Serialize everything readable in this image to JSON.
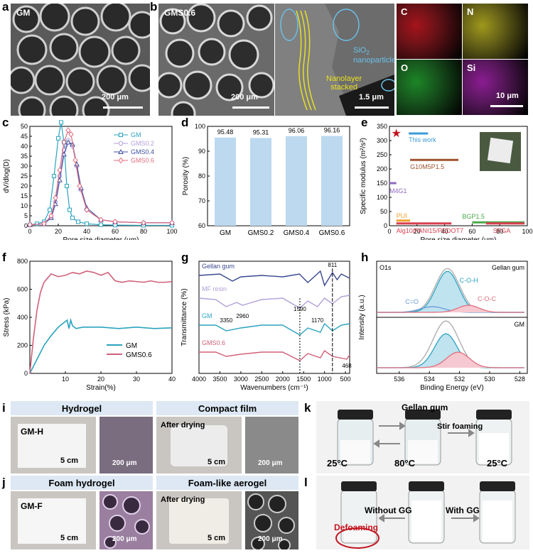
{
  "panels": {
    "a": {
      "letter": "a",
      "tag": "GM",
      "scale": "200 μm"
    },
    "b": {
      "letter": "b",
      "tag": "GMS0.6",
      "scale": "200 μm",
      "scale2": "1.5 μm",
      "note1a": "SiO",
      "note1b": "nanoparticles",
      "note2a": "Nanolayer",
      "note2b": "stacked",
      "eds": [
        {
          "el": "C",
          "color": "#c0141e"
        },
        {
          "el": "N",
          "color": "#b8b01e"
        },
        {
          "el": "O",
          "color": "#1e9a2a"
        },
        {
          "el": "Si",
          "color": "#a01ea8"
        }
      ],
      "eds_scale": "10 μm"
    },
    "c": {
      "letter": "c"
    },
    "d": {
      "letter": "d"
    },
    "e": {
      "letter": "e"
    },
    "f": {
      "letter": "f"
    },
    "g": {
      "letter": "g"
    },
    "h": {
      "letter": "h"
    },
    "i": {
      "letter": "i",
      "left_title": "Hydrogel",
      "right_title": "Compact film",
      "left_tag": "GM-H",
      "left_scale": "5 cm",
      "left_sem": "200 μm",
      "right_tag": "After drying",
      "right_scale": "5 cm",
      "right_sem": "200 μm"
    },
    "j": {
      "letter": "j",
      "left_title": "Foam hydrogel",
      "right_title": "Foam-like aerogel",
      "left_tag": "GM-F",
      "left_scale": "5 cm",
      "left_sem": "200 μm",
      "right_tag": "After drying",
      "right_scale": "5 cm",
      "right_sem": "200 μm"
    },
    "k": {
      "letter": "k",
      "top": "Gellan gum",
      "t1": "25°C",
      "t2": "80°C",
      "t3": "25°C",
      "action": "Stir foaming"
    },
    "l": {
      "letter": "l",
      "left": "Without GG",
      "right": "With GG",
      "defoam": "Defoaming"
    }
  },
  "chart_data": [
    {
      "id": "c",
      "type": "line",
      "xlabel": "Pore size diameter (μm)",
      "ylabel": "dV/dlog(D)",
      "xlim": [
        0,
        100
      ],
      "ylim": [
        0,
        50
      ],
      "xticks": [
        0,
        20,
        40,
        60,
        80,
        100
      ],
      "yticks": [
        0,
        5,
        10,
        15,
        20,
        25,
        30,
        35,
        40,
        45,
        50
      ],
      "legend": "top-right",
      "series": [
        {
          "name": "GM",
          "color": "#2aa3c0",
          "marker": "square",
          "x": [
            0,
            5,
            10,
            14,
            17,
            20,
            22,
            24,
            26,
            28,
            30,
            34,
            40,
            50,
            60,
            80,
            100
          ],
          "y": [
            0.5,
            1,
            2,
            8,
            25,
            44,
            52,
            42,
            20,
            8,
            4,
            2,
            1,
            0.5,
            0.3,
            0.2,
            0.2
          ]
        },
        {
          "name": "GMS0.2",
          "color": "#b39ddb",
          "marker": "circle",
          "x": [
            0,
            10,
            15,
            18,
            21,
            24,
            27,
            30,
            33,
            36,
            40,
            50,
            60,
            80,
            100
          ],
          "y": [
            0.5,
            1,
            4,
            12,
            25,
            38,
            43,
            40,
            30,
            18,
            8,
            3,
            2,
            1.5,
            1.5
          ]
        },
        {
          "name": "GMS0.4",
          "color": "#3f4fa0",
          "marker": "triangle",
          "x": [
            0,
            10,
            15,
            18,
            21,
            24,
            27,
            30,
            33,
            36,
            40,
            50,
            60,
            80,
            100
          ],
          "y": [
            0.5,
            1,
            4,
            11,
            23,
            36,
            42,
            41,
            31,
            19,
            9,
            3,
            2,
            1.5,
            1.5
          ]
        },
        {
          "name": "GMS0.6",
          "color": "#e06e80",
          "marker": "diamond",
          "x": [
            0,
            10,
            15,
            18,
            21,
            24,
            27,
            29,
            32,
            35,
            40,
            50,
            60,
            80,
            100
          ],
          "y": [
            0.5,
            1,
            5,
            14,
            28,
            42,
            48,
            46,
            33,
            20,
            8,
            3,
            2,
            1.5,
            1.5
          ]
        }
      ]
    },
    {
      "id": "d",
      "type": "bar",
      "xlabel": "",
      "ylabel": "Porosity (%)",
      "ylim": [
        60,
        100
      ],
      "yticks": [
        60,
        70,
        80,
        90,
        100
      ],
      "categories": [
        "GM",
        "GMS0.2",
        "GMS0.4",
        "GMS0.6"
      ],
      "values": [
        95.48,
        95.31,
        96.06,
        96.16
      ],
      "labels": [
        "95.48",
        "95.31",
        "96.06",
        "96.16"
      ],
      "bar_color": "#bcd9ef"
    },
    {
      "id": "e",
      "type": "scatter",
      "xlabel": "Pore size diameter (μm)",
      "ylabel": "Specific modulus (m²/s²)",
      "xlim": [
        0,
        100
      ],
      "ylim": [
        0,
        350
      ],
      "xticks": [
        0,
        20,
        40,
        60,
        80,
        100
      ],
      "yticks": [
        0,
        50,
        100,
        150,
        200,
        250,
        300,
        350
      ],
      "items": [
        {
          "name": "This work",
          "x": [
            14,
            28
          ],
          "y": 325,
          "color": "#3a9bd8"
        },
        {
          "name": "G10M5P1.5",
          "x": [
            15,
            50
          ],
          "y": 232,
          "color": "#a0522d"
        },
        {
          "name": "M4G1",
          "x": [
            0,
            5
          ],
          "y": 150,
          "color": "#8e6bbf"
        },
        {
          "name": "PUI",
          "x": [
            5,
            15
          ],
          "y": 18,
          "color": "#f0a030"
        },
        {
          "name": "Alg10/PANI15/PEDOT7",
          "x": [
            5,
            45
          ],
          "y": 8,
          "color": "#d84050"
        },
        {
          "name": "BGP1.5",
          "x": [
            60,
            98
          ],
          "y": 12,
          "color": "#4aa84a"
        },
        {
          "name": "SFGA",
          "x": [
            70,
            98
          ],
          "y": 8,
          "color": "#d84050"
        }
      ],
      "star": {
        "x": 5,
        "y": 325,
        "color": "#c0141e"
      }
    },
    {
      "id": "f",
      "type": "line",
      "xlabel": "Strain(%)",
      "ylabel": "Stress (kPa)",
      "xlim": [
        0,
        40
      ],
      "ylim": [
        0,
        800
      ],
      "xticks": [
        10,
        20,
        30,
        40
      ],
      "yticks": [
        0,
        200,
        400,
        600,
        800
      ],
      "legend": "bottom-right",
      "series": [
        {
          "name": "GM",
          "color": "#2aa3c0",
          "x": [
            0,
            2,
            4,
            6,
            8,
            10,
            10.5,
            11,
            11.5,
            12,
            13,
            15,
            20,
            25,
            30,
            35,
            40
          ],
          "y": [
            0,
            100,
            200,
            270,
            330,
            370,
            380,
            320,
            380,
            340,
            320,
            330,
            330,
            320,
            330,
            320,
            325
          ]
        },
        {
          "name": "GMS0.6",
          "color": "#d0607a",
          "x": [
            0,
            1,
            2,
            3,
            4,
            5,
            6,
            8,
            10,
            12,
            14,
            16,
            18,
            20,
            22,
            24,
            26,
            28,
            30,
            32,
            34,
            36,
            38,
            40
          ],
          "y": [
            0,
            250,
            450,
            580,
            650,
            680,
            710,
            690,
            700,
            720,
            710,
            730,
            720,
            700,
            720,
            660,
            650,
            660,
            655,
            650,
            660,
            650,
            650,
            655
          ]
        }
      ]
    },
    {
      "id": "g",
      "type": "line",
      "xlabel": "Wavenumbers (cm⁻¹)",
      "ylabel": "Transmittance (%)",
      "xlim": [
        4000,
        400
      ],
      "xticks": [
        4000,
        3500,
        3000,
        2500,
        2000,
        1500,
        1000,
        500
      ],
      "series": [
        {
          "name": "Gellan gum",
          "color": "#3a4890"
        },
        {
          "name": "MF resin",
          "color": "#b0a0d8"
        },
        {
          "name": "GM",
          "color": "#2aa3c0"
        },
        {
          "name": "GMS0.6",
          "color": "#d0607a"
        }
      ],
      "annotations": [
        "3350",
        "2960",
        "1590",
        "1170",
        "811",
        "468"
      ]
    },
    {
      "id": "h",
      "type": "line",
      "xlabel": "Binding Energy (eV)",
      "ylabel": "Intensity (a.u.)",
      "xlim": [
        537.5,
        527.5
      ],
      "xticks": [
        536,
        534,
        532,
        530,
        528
      ],
      "top_title": "O1s",
      "top_label": "Gellan gum",
      "bottom_label": "GM",
      "peaks": [
        "C=O",
        "C-O-H",
        "C-O-C"
      ]
    }
  ]
}
